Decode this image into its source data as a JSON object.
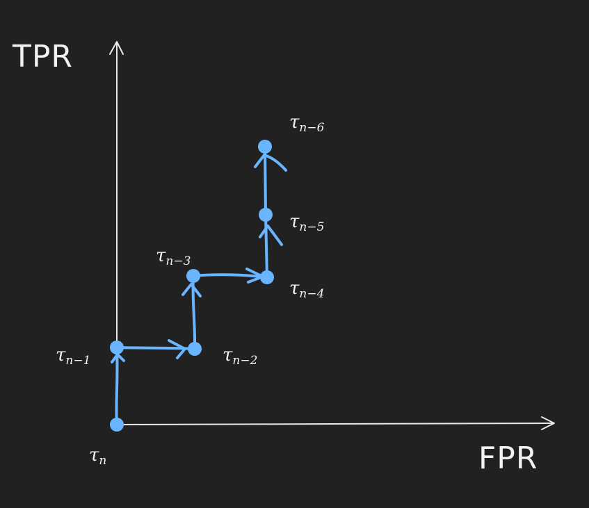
{
  "axes": {
    "x_label": "FPR",
    "y_label": "TPR"
  },
  "thresholds": [
    {
      "id": "n",
      "base": "τ",
      "sub": "n"
    },
    {
      "id": "n1",
      "base": "τ",
      "sub": "n−1"
    },
    {
      "id": "n2",
      "base": "τ",
      "sub": "n−2"
    },
    {
      "id": "n3",
      "base": "τ",
      "sub": "n−3"
    },
    {
      "id": "n4",
      "base": "τ",
      "sub": "n−4"
    },
    {
      "id": "n5",
      "base": "τ",
      "sub": "n−5"
    },
    {
      "id": "n6",
      "base": "τ",
      "sub": "n−6"
    }
  ],
  "colors": {
    "background": "#212121",
    "axis": "#eaeaea",
    "path": "#6ab5ff",
    "text": "#f2f2f2"
  }
}
